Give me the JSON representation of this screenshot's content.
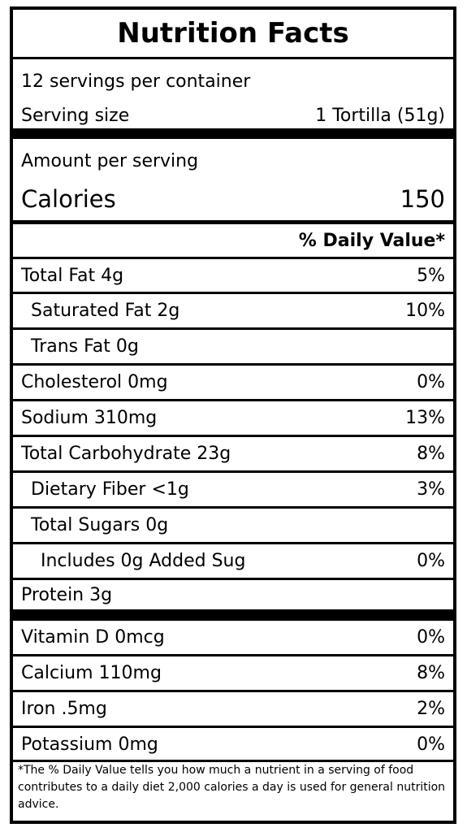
{
  "title": "Nutrition Facts",
  "servings_per_container": "12 servings per container",
  "serving_size_label": "Serving size",
  "serving_size_value": "1 Tortilla (51g)",
  "amount_per_serving": "Amount per serving",
  "calories_label": "Calories",
  "calories_value": "150",
  "daily_value_header": "% Daily Value*",
  "nutrients": [
    {
      "label": "Total Fat 4g",
      "dv": "5%"
    },
    {
      "label": "Saturated Fat 2g",
      "dv": "10%"
    },
    {
      "label": "Trans Fat 0g",
      "dv": ""
    },
    {
      "label": "Cholesterol 0mg",
      "dv": "0%"
    },
    {
      "label": "Sodium 310mg",
      "dv": "13%"
    },
    {
      "label": "Total Carbohydrate 23g",
      "dv": "8%"
    },
    {
      "label": "Dietary Fiber <1g",
      "dv": "3%"
    },
    {
      "label": "Total Sugars 0g",
      "dv": ""
    },
    {
      "label": "Includes 0g Added Sug",
      "dv": "0%"
    },
    {
      "label": "Protein 3g",
      "dv": ""
    }
  ],
  "vitamins": [
    {
      "label": "Vitamin D 0mcg",
      "dv": "0%"
    },
    {
      "label": "Calcium 110mg",
      "dv": "8%"
    },
    {
      "label": "Iron .5mg",
      "dv": "2%"
    },
    {
      "label": "Potassium 0mg",
      "dv": "0%"
    }
  ],
  "footnote": "*The % Daily Value tells you how much a nutrient in a serving of food contributes to a daily diet 2,000 calories a day is used for general nutrition advice."
}
